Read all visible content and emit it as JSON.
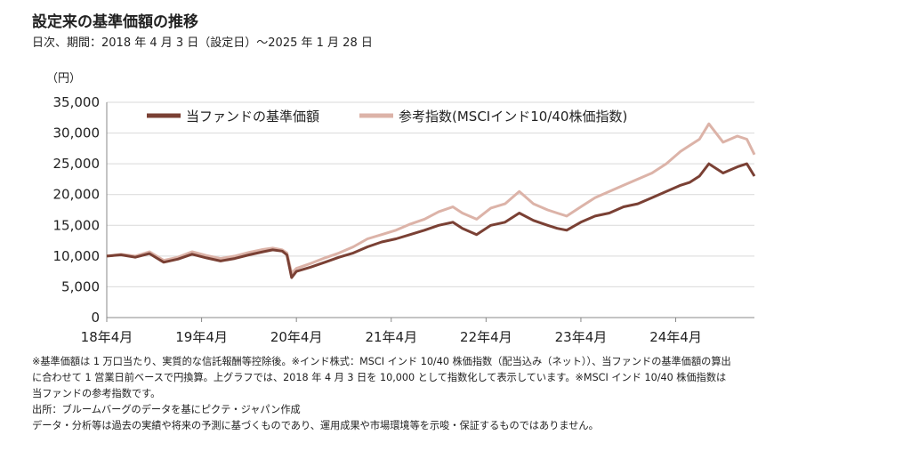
{
  "header": {
    "title": "設定来の基準価額の推移",
    "subtitle": "日次、期間：2018 年 4 月 3 日（設定日）～2025 年 1 月 28 日"
  },
  "chart_data": {
    "type": "line",
    "ylabel": "（円）",
    "ylim": [
      0,
      35000
    ],
    "y_ticks": [
      0,
      5000,
      10000,
      15000,
      20000,
      25000,
      30000,
      35000
    ],
    "y_tick_labels": [
      "0",
      "5,000",
      "10,000",
      "15,000",
      "20,000",
      "25,000",
      "30,000",
      "35,000"
    ],
    "x_tick_labels": [
      "18年4月",
      "19年4月",
      "20年4月",
      "21年4月",
      "22年4月",
      "23年4月",
      "24年4月"
    ],
    "x_ticks": [
      2018.25,
      2019.25,
      2020.25,
      2021.25,
      2022.25,
      2023.25,
      2024.25
    ],
    "xlim": [
      2018.25,
      2025.08
    ],
    "legend_position": "top",
    "grid": true,
    "series": [
      {
        "name": "当ファンドの基準価額",
        "color": "#7a4034",
        "x": [
          2018.25,
          2018.4,
          2018.55,
          2018.7,
          2018.85,
          2019.0,
          2019.15,
          2019.3,
          2019.45,
          2019.6,
          2019.75,
          2019.9,
          2020.0,
          2020.1,
          2020.15,
          2020.2,
          2020.25,
          2020.4,
          2020.55,
          2020.7,
          2020.85,
          2021.0,
          2021.15,
          2021.3,
          2021.45,
          2021.6,
          2021.75,
          2021.9,
          2022.0,
          2022.15,
          2022.3,
          2022.45,
          2022.6,
          2022.75,
          2022.9,
          2023.0,
          2023.1,
          2023.25,
          2023.4,
          2023.55,
          2023.7,
          2023.85,
          2024.0,
          2024.15,
          2024.3,
          2024.4,
          2024.5,
          2024.6,
          2024.75,
          2024.9,
          2025.0,
          2025.08
        ],
        "y": [
          10000,
          10200,
          9800,
          10400,
          9000,
          9500,
          10300,
          9700,
          9200,
          9600,
          10200,
          10700,
          11000,
          10800,
          10200,
          6500,
          7500,
          8200,
          9000,
          9800,
          10500,
          11500,
          12300,
          12800,
          13500,
          14200,
          15000,
          15500,
          14500,
          13500,
          15000,
          15500,
          17000,
          15800,
          15000,
          14500,
          14200,
          15500,
          16500,
          17000,
          18000,
          18500,
          19500,
          20500,
          21500,
          22000,
          23000,
          25000,
          23500,
          24500,
          25000,
          23000
        ]
      },
      {
        "name": "参考指数(MSCIインド10/40株価指数)",
        "color": "#dcb3a8",
        "x": [
          2018.25,
          2018.4,
          2018.55,
          2018.7,
          2018.85,
          2019.0,
          2019.15,
          2019.3,
          2019.45,
          2019.6,
          2019.75,
          2019.9,
          2020.0,
          2020.1,
          2020.15,
          2020.2,
          2020.25,
          2020.4,
          2020.55,
          2020.7,
          2020.85,
          2021.0,
          2021.15,
          2021.3,
          2021.45,
          2021.6,
          2021.75,
          2021.9,
          2022.0,
          2022.15,
          2022.3,
          2022.45,
          2022.6,
          2022.75,
          2022.9,
          2023.0,
          2023.1,
          2023.25,
          2023.4,
          2023.55,
          2023.7,
          2023.85,
          2024.0,
          2024.15,
          2024.3,
          2024.4,
          2024.5,
          2024.6,
          2024.75,
          2024.9,
          2025.0,
          2025.08
        ],
        "y": [
          10000,
          10300,
          10000,
          10700,
          9300,
          9800,
          10700,
          10100,
          9600,
          10000,
          10600,
          11100,
          11300,
          11000,
          10500,
          7200,
          8000,
          8800,
          9700,
          10500,
          11500,
          12800,
          13500,
          14200,
          15200,
          16000,
          17200,
          18000,
          17000,
          16000,
          17800,
          18500,
          20500,
          18500,
          17500,
          17000,
          16500,
          18000,
          19500,
          20500,
          21500,
          22500,
          23500,
          25000,
          27000,
          28000,
          29000,
          31500,
          28500,
          29500,
          29000,
          26500
        ]
      }
    ]
  },
  "notes": [
    "※基準価額は 1 万口当たり、実質的な信託報酬等控除後。※インド株式：MSCI インド 10/40 株価指数（配当込み（ネット））、当ファンドの基準価額の算出",
    "に合わせて 1 営業日前ベースで円換算。上グラフでは、2018 年 4 月 3 日を 10,000 として指数化して表示しています。※MSCI インド 10/40 株価指数は",
    "当ファンドの参考指数です。",
    "出所：ブルームバーグのデータを基にピクテ・ジャパン作成",
    "データ・分析等は過去の実績や将来の予測に基づくものであり、運用成果や市場環境等を示唆・保証するものではありません。"
  ]
}
